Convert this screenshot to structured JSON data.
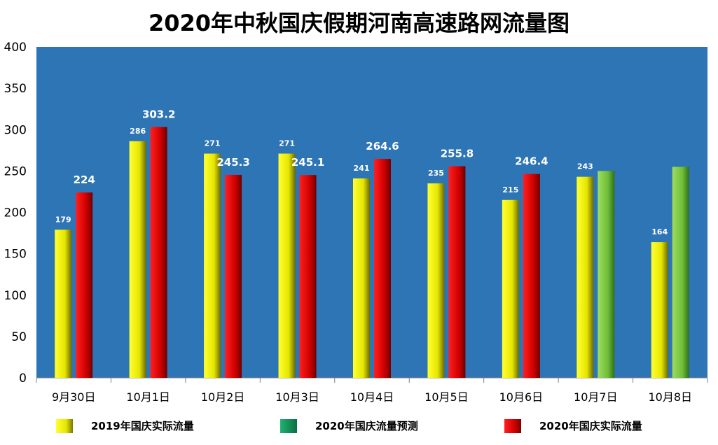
{
  "chart_data": {
    "type": "bar",
    "title": "2020年中秋国庆假期河南高速路网流量图",
    "categories": [
      "9月30日",
      "10月1日",
      "10月2日",
      "10月3日",
      "10月4日",
      "10月5日",
      "10月6日",
      "10月7日",
      "10月8日"
    ],
    "ylim": [
      0,
      400
    ],
    "yticks": [
      0,
      50,
      100,
      150,
      200,
      250,
      300,
      350,
      400
    ],
    "background_color": "#2e75b6",
    "grid": false,
    "legend_position": "bottom",
    "series": [
      {
        "name": "2019年国庆实际流量",
        "color": "#f0f000",
        "values": [
          179,
          286,
          271,
          271,
          241,
          235,
          215,
          243,
          164
        ],
        "labels": [
          "179",
          "286",
          "271",
          "271",
          "241",
          "235",
          "215",
          "243",
          "164"
        ]
      },
      {
        "name": "2020年国庆流量预测",
        "color": "#7cc242",
        "values": [
          null,
          null,
          null,
          null,
          null,
          null,
          null,
          250,
          255
        ],
        "labels": [
          null,
          null,
          null,
          null,
          null,
          null,
          null,
          null,
          null
        ]
      },
      {
        "name": "2020年国庆实际流量",
        "color": "#e00000",
        "values": [
          224,
          303.2,
          245.3,
          245.1,
          264.6,
          255.8,
          246.4,
          null,
          null
        ],
        "labels": [
          "224",
          "303.2",
          "245.3",
          "245.1",
          "264.6",
          "255.8",
          "246.4",
          null,
          null
        ]
      }
    ]
  }
}
